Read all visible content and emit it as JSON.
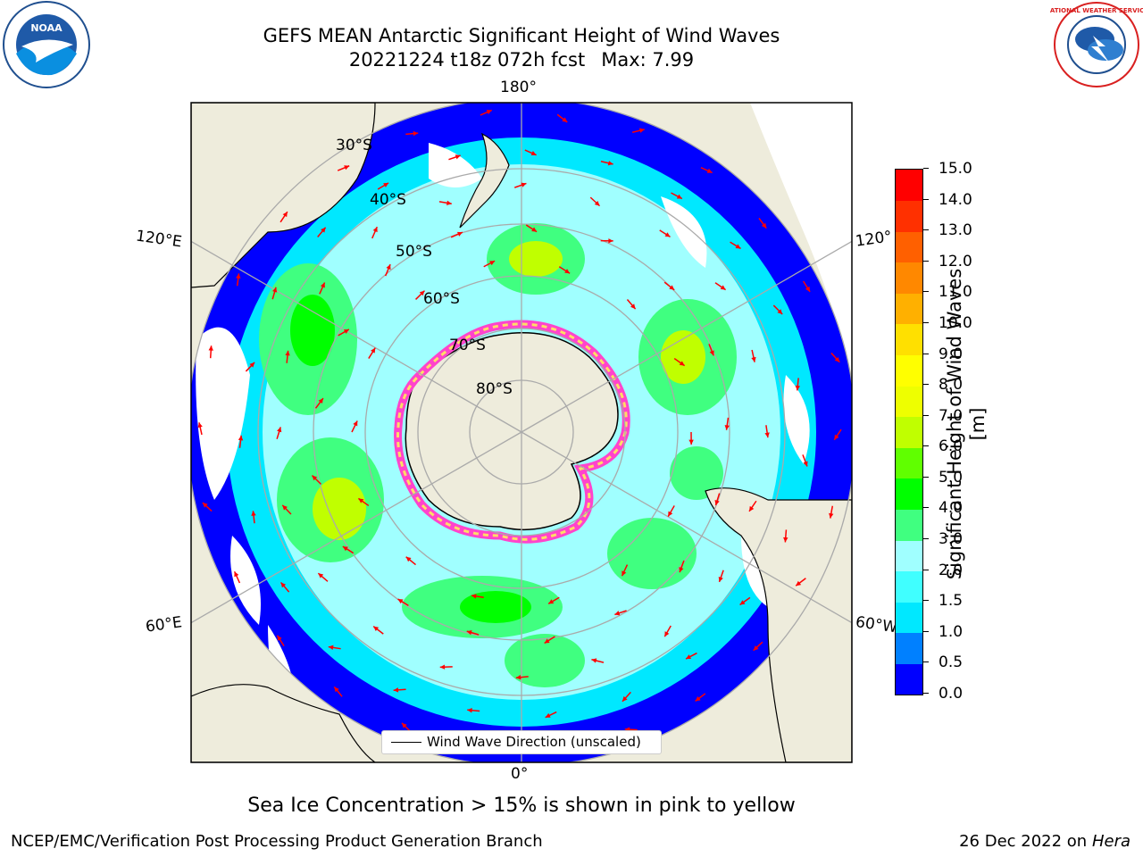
{
  "header": {
    "title_line1": "GEFS MEAN Antarctic Significant Height of Wind Waves",
    "date_fcst": "20221224 t18z 072h fcst",
    "max_label": "Max: 7.99"
  },
  "map": {
    "projection": "south-polar-stereographic",
    "lon_labels": {
      "top": "180°",
      "bottom": "0°",
      "left_upper": "120°E",
      "left_lower": "60°E",
      "right_upper": "120°",
      "right_lower": "60°W"
    },
    "lat_labels": [
      "30°S",
      "40°S",
      "50°S",
      "60°S",
      "70°S",
      "80°S"
    ],
    "colors": {
      "land": "#eeecdc",
      "ocean_no_data": "#ffffff",
      "ice_pink": "#ff44cc",
      "ice_yellow": "#ffdd66",
      "arrow": "#ff0000",
      "grid": "#aaaaaa"
    },
    "legend_text": "Wind Wave Direction (unscaled)"
  },
  "colorbar": {
    "label": "Significant Height of Wind Waves [m]",
    "ticks": [
      "0.0",
      "0.5",
      "1.0",
      "1.5",
      "2.0",
      "3.0",
      "4.0",
      "5.0",
      "6.0",
      "7.0",
      "8.0",
      "9.0",
      "10.0",
      "11.0",
      "12.0",
      "13.0",
      "14.0",
      "15.0"
    ],
    "colors": [
      "#0000ff",
      "#0080ff",
      "#00e8ff",
      "#40ffff",
      "#a0ffff",
      "#40ff80",
      "#00ff00",
      "#60ff00",
      "#c0ff00",
      "#eeff00",
      "#ffff00",
      "#ffe000",
      "#ffb000",
      "#ff8800",
      "#ff6000",
      "#ff3000",
      "#ff0000"
    ]
  },
  "footer": {
    "sea_ice_note": "Sea Ice Concentration > 15% is shown in pink to yellow",
    "producer": "NCEP/EMC/Verification Post Processing Product Generation Branch",
    "date": "26 Dec 2022 on",
    "machine": "Hera"
  },
  "logos": {
    "left_text": "NOAA",
    "right_text": "NATIONAL WEATHER SERVICE"
  }
}
